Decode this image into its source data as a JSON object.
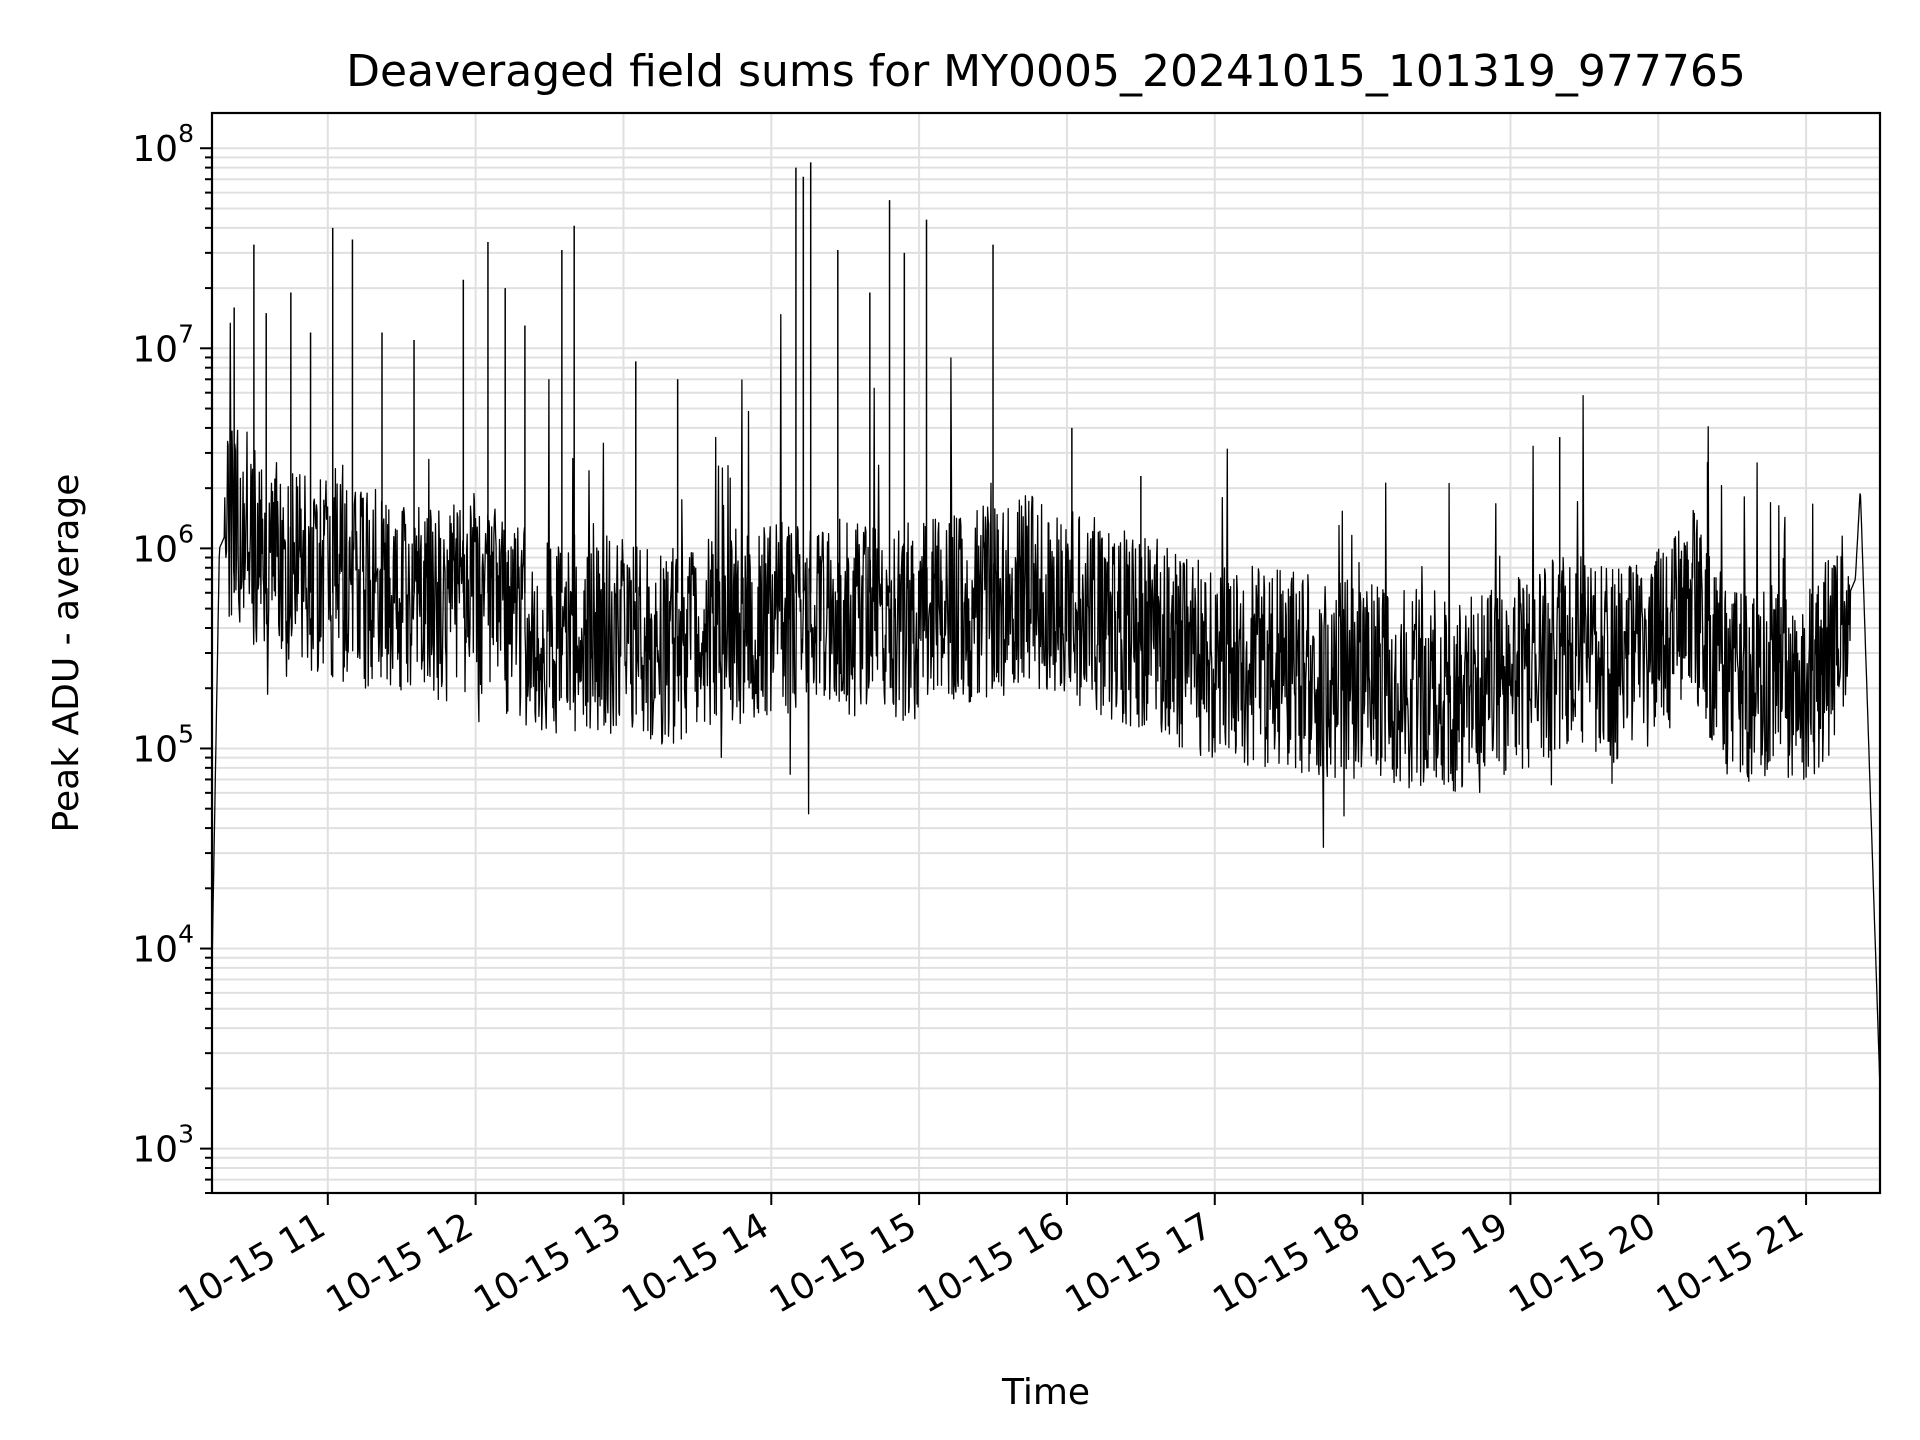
{
  "chart_data": {
    "type": "line",
    "title": "Deaveraged field sums for MY0005_20241015_101319_977765",
    "xlabel": "Time",
    "ylabel": "Peak ADU - average",
    "yscale": "log",
    "ylim": [
      600,
      150000000
    ],
    "xlim": [
      "2024-10-15 10:13",
      "2024-10-15 21:30"
    ],
    "grid": "both",
    "line_color": "#000000",
    "x_ticks": [
      "10-15 11",
      "10-15 12",
      "10-15 13",
      "10-15 14",
      "10-15 15",
      "10-15 16",
      "10-15 17",
      "10-15 18",
      "10-15 19",
      "10-15 20",
      "10-15 21"
    ],
    "y_ticks": [
      {
        "base": "10",
        "exp": "3",
        "value": 1000
      },
      {
        "base": "10",
        "exp": "4",
        "value": 10000
      },
      {
        "base": "10",
        "exp": "5",
        "value": 100000
      },
      {
        "base": "10",
        "exp": "6",
        "value": 1000000
      },
      {
        "base": "10",
        "exp": "7",
        "value": 10000000
      },
      {
        "base": "10",
        "exp": "8",
        "value": 100000000
      }
    ],
    "series": [
      {
        "x": [
          "2024-10-15 10:13",
          "2024-10-15 10:16",
          "2024-10-15 10:20",
          "2024-10-15 10:25",
          "2024-10-15 10:30",
          "2024-10-15 10:40",
          "2024-10-15 10:50",
          "2024-10-15 11:00",
          "2024-10-15 11:15",
          "2024-10-15 11:30",
          "2024-10-15 11:45",
          "2024-10-15 12:00",
          "2024-10-15 12:15",
          "2024-10-15 12:30",
          "2024-10-15 12:45",
          "2024-10-15 13:00",
          "2024-10-15 13:15",
          "2024-10-15 13:30",
          "2024-10-15 13:45",
          "2024-10-15 14:00",
          "2024-10-15 14:15",
          "2024-10-15 14:30",
          "2024-10-15 14:45",
          "2024-10-15 15:00",
          "2024-10-15 15:15",
          "2024-10-15 15:30",
          "2024-10-15 15:45",
          "2024-10-15 16:00",
          "2024-10-15 16:15",
          "2024-10-15 16:30",
          "2024-10-15 16:45",
          "2024-10-15 17:00",
          "2024-10-15 17:15",
          "2024-10-15 17:30",
          "2024-10-15 17:45",
          "2024-10-15 18:00",
          "2024-10-15 18:15",
          "2024-10-15 18:30",
          "2024-10-15 18:45",
          "2024-10-15 19:00",
          "2024-10-15 19:15",
          "2024-10-15 19:30",
          "2024-10-15 19:45",
          "2024-10-15 20:00",
          "2024-10-15 20:15",
          "2024-10-15 20:30",
          "2024-10-15 20:45",
          "2024-10-15 21:00",
          "2024-10-15 21:10",
          "2024-10-15 21:15",
          "2024-10-15 21:20",
          "2024-10-15 21:22",
          "2024-10-15 21:25",
          "2024-10-15 21:30"
        ],
        "y": [
          8000,
          1000000,
          1300000,
          1200000,
          1000000,
          900000,
          800000,
          700000,
          600000,
          550000,
          500000,
          600000,
          450000,
          350000,
          400000,
          350000,
          300000,
          350000,
          400000,
          450000,
          400000,
          450000,
          400000,
          450000,
          500000,
          550000,
          600000,
          500000,
          450000,
          400000,
          300000,
          280000,
          250000,
          250000,
          220000,
          220000,
          200000,
          200000,
          180000,
          220000,
          280000,
          300000,
          250000,
          350000,
          500000,
          200000,
          220000,
          200000,
          300000,
          500000,
          700000,
          2000000,
          150000,
          2000
        ]
      }
    ],
    "spikes": [
      {
        "x": "2024-10-15 10:22",
        "y": 16000000
      },
      {
        "x": "2024-10-15 10:30",
        "y": 33000000
      },
      {
        "x": "2024-10-15 10:35",
        "y": 15000000
      },
      {
        "x": "2024-10-15 10:45",
        "y": 19000000
      },
      {
        "x": "2024-10-15 10:53",
        "y": 12000000
      },
      {
        "x": "2024-10-15 11:02",
        "y": 40000000
      },
      {
        "x": "2024-10-15 11:10",
        "y": 35000000
      },
      {
        "x": "2024-10-15 11:22",
        "y": 12000000
      },
      {
        "x": "2024-10-15 11:35",
        "y": 11000000
      },
      {
        "x": "2024-10-15 11:55",
        "y": 22000000
      },
      {
        "x": "2024-10-15 12:05",
        "y": 34000000
      },
      {
        "x": "2024-10-15 12:12",
        "y": 20000000
      },
      {
        "x": "2024-10-15 12:20",
        "y": 13000000
      },
      {
        "x": "2024-10-15 12:35",
        "y": 31000000
      },
      {
        "x": "2024-10-15 12:40",
        "y": 41000000
      },
      {
        "x": "2024-10-15 13:05",
        "y": 8600000
      },
      {
        "x": "2024-10-15 13:22",
        "y": 7000000
      },
      {
        "x": "2024-10-15 14:10",
        "y": 80000000
      },
      {
        "x": "2024-10-15 14:13",
        "y": 72000000
      },
      {
        "x": "2024-10-15 14:16",
        "y": 85000000
      },
      {
        "x": "2024-10-15 14:27",
        "y": 31000000
      },
      {
        "x": "2024-10-15 14:40",
        "y": 19000000
      },
      {
        "x": "2024-10-15 14:48",
        "y": 55000000
      },
      {
        "x": "2024-10-15 14:54",
        "y": 30000000
      },
      {
        "x": "2024-10-15 15:03",
        "y": 44000000
      },
      {
        "x": "2024-10-15 15:30",
        "y": 33000000
      },
      {
        "x": "2024-10-15 16:02",
        "y": 4000000
      },
      {
        "x": "2024-10-15 16:30",
        "y": 2300000
      },
      {
        "x": "2024-10-15 19:20",
        "y": 3600000
      },
      {
        "x": "2024-10-15 20:20",
        "y": 2700000
      }
    ]
  }
}
